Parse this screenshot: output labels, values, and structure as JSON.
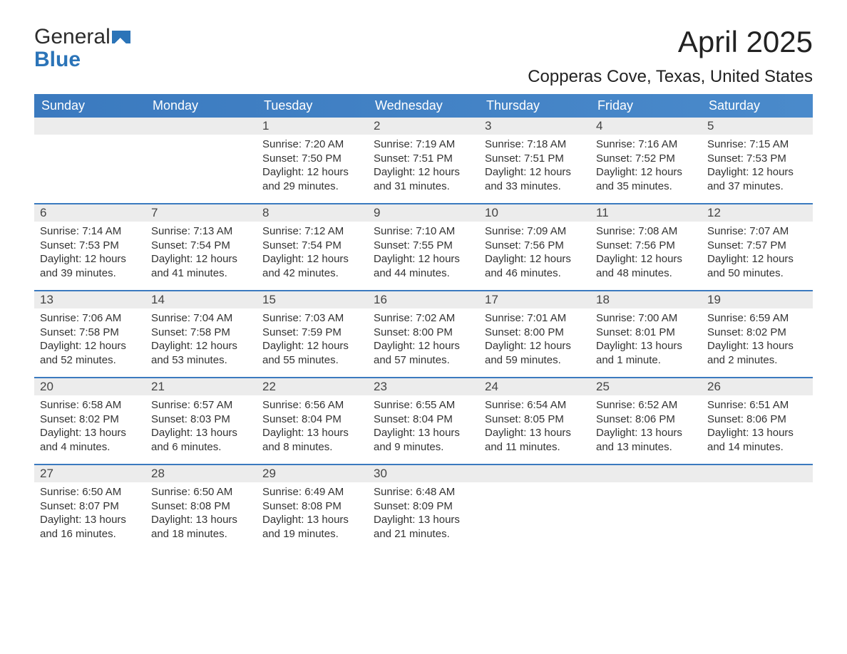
{
  "logo": {
    "word1": "General",
    "word2": "Blue"
  },
  "title": "April 2025",
  "location": "Copperas Cove, Texas, United States",
  "colors": {
    "header_blue": "#3b7abf",
    "row_stripe": "#ececec",
    "border_blue": "#3b7abf",
    "text": "#333333",
    "logo_blue": "#2b74b8",
    "background": "#ffffff"
  },
  "weekdays": [
    "Sunday",
    "Monday",
    "Tuesday",
    "Wednesday",
    "Thursday",
    "Friday",
    "Saturday"
  ],
  "weeks": [
    [
      {
        "day": "",
        "sunrise": "",
        "sunset": "",
        "daylight": ""
      },
      {
        "day": "",
        "sunrise": "",
        "sunset": "",
        "daylight": ""
      },
      {
        "day": "1",
        "sunrise": "Sunrise: 7:20 AM",
        "sunset": "Sunset: 7:50 PM",
        "daylight": "Daylight: 12 hours and 29 minutes."
      },
      {
        "day": "2",
        "sunrise": "Sunrise: 7:19 AM",
        "sunset": "Sunset: 7:51 PM",
        "daylight": "Daylight: 12 hours and 31 minutes."
      },
      {
        "day": "3",
        "sunrise": "Sunrise: 7:18 AM",
        "sunset": "Sunset: 7:51 PM",
        "daylight": "Daylight: 12 hours and 33 minutes."
      },
      {
        "day": "4",
        "sunrise": "Sunrise: 7:16 AM",
        "sunset": "Sunset: 7:52 PM",
        "daylight": "Daylight: 12 hours and 35 minutes."
      },
      {
        "day": "5",
        "sunrise": "Sunrise: 7:15 AM",
        "sunset": "Sunset: 7:53 PM",
        "daylight": "Daylight: 12 hours and 37 minutes."
      }
    ],
    [
      {
        "day": "6",
        "sunrise": "Sunrise: 7:14 AM",
        "sunset": "Sunset: 7:53 PM",
        "daylight": "Daylight: 12 hours and 39 minutes."
      },
      {
        "day": "7",
        "sunrise": "Sunrise: 7:13 AM",
        "sunset": "Sunset: 7:54 PM",
        "daylight": "Daylight: 12 hours and 41 minutes."
      },
      {
        "day": "8",
        "sunrise": "Sunrise: 7:12 AM",
        "sunset": "Sunset: 7:54 PM",
        "daylight": "Daylight: 12 hours and 42 minutes."
      },
      {
        "day": "9",
        "sunrise": "Sunrise: 7:10 AM",
        "sunset": "Sunset: 7:55 PM",
        "daylight": "Daylight: 12 hours and 44 minutes."
      },
      {
        "day": "10",
        "sunrise": "Sunrise: 7:09 AM",
        "sunset": "Sunset: 7:56 PM",
        "daylight": "Daylight: 12 hours and 46 minutes."
      },
      {
        "day": "11",
        "sunrise": "Sunrise: 7:08 AM",
        "sunset": "Sunset: 7:56 PM",
        "daylight": "Daylight: 12 hours and 48 minutes."
      },
      {
        "day": "12",
        "sunrise": "Sunrise: 7:07 AM",
        "sunset": "Sunset: 7:57 PM",
        "daylight": "Daylight: 12 hours and 50 minutes."
      }
    ],
    [
      {
        "day": "13",
        "sunrise": "Sunrise: 7:06 AM",
        "sunset": "Sunset: 7:58 PM",
        "daylight": "Daylight: 12 hours and 52 minutes."
      },
      {
        "day": "14",
        "sunrise": "Sunrise: 7:04 AM",
        "sunset": "Sunset: 7:58 PM",
        "daylight": "Daylight: 12 hours and 53 minutes."
      },
      {
        "day": "15",
        "sunrise": "Sunrise: 7:03 AM",
        "sunset": "Sunset: 7:59 PM",
        "daylight": "Daylight: 12 hours and 55 minutes."
      },
      {
        "day": "16",
        "sunrise": "Sunrise: 7:02 AM",
        "sunset": "Sunset: 8:00 PM",
        "daylight": "Daylight: 12 hours and 57 minutes."
      },
      {
        "day": "17",
        "sunrise": "Sunrise: 7:01 AM",
        "sunset": "Sunset: 8:00 PM",
        "daylight": "Daylight: 12 hours and 59 minutes."
      },
      {
        "day": "18",
        "sunrise": "Sunrise: 7:00 AM",
        "sunset": "Sunset: 8:01 PM",
        "daylight": "Daylight: 13 hours and 1 minute."
      },
      {
        "day": "19",
        "sunrise": "Sunrise: 6:59 AM",
        "sunset": "Sunset: 8:02 PM",
        "daylight": "Daylight: 13 hours and 2 minutes."
      }
    ],
    [
      {
        "day": "20",
        "sunrise": "Sunrise: 6:58 AM",
        "sunset": "Sunset: 8:02 PM",
        "daylight": "Daylight: 13 hours and 4 minutes."
      },
      {
        "day": "21",
        "sunrise": "Sunrise: 6:57 AM",
        "sunset": "Sunset: 8:03 PM",
        "daylight": "Daylight: 13 hours and 6 minutes."
      },
      {
        "day": "22",
        "sunrise": "Sunrise: 6:56 AM",
        "sunset": "Sunset: 8:04 PM",
        "daylight": "Daylight: 13 hours and 8 minutes."
      },
      {
        "day": "23",
        "sunrise": "Sunrise: 6:55 AM",
        "sunset": "Sunset: 8:04 PM",
        "daylight": "Daylight: 13 hours and 9 minutes."
      },
      {
        "day": "24",
        "sunrise": "Sunrise: 6:54 AM",
        "sunset": "Sunset: 8:05 PM",
        "daylight": "Daylight: 13 hours and 11 minutes."
      },
      {
        "day": "25",
        "sunrise": "Sunrise: 6:52 AM",
        "sunset": "Sunset: 8:06 PM",
        "daylight": "Daylight: 13 hours and 13 minutes."
      },
      {
        "day": "26",
        "sunrise": "Sunrise: 6:51 AM",
        "sunset": "Sunset: 8:06 PM",
        "daylight": "Daylight: 13 hours and 14 minutes."
      }
    ],
    [
      {
        "day": "27",
        "sunrise": "Sunrise: 6:50 AM",
        "sunset": "Sunset: 8:07 PM",
        "daylight": "Daylight: 13 hours and 16 minutes."
      },
      {
        "day": "28",
        "sunrise": "Sunrise: 6:50 AM",
        "sunset": "Sunset: 8:08 PM",
        "daylight": "Daylight: 13 hours and 18 minutes."
      },
      {
        "day": "29",
        "sunrise": "Sunrise: 6:49 AM",
        "sunset": "Sunset: 8:08 PM",
        "daylight": "Daylight: 13 hours and 19 minutes."
      },
      {
        "day": "30",
        "sunrise": "Sunrise: 6:48 AM",
        "sunset": "Sunset: 8:09 PM",
        "daylight": "Daylight: 13 hours and 21 minutes."
      },
      {
        "day": "",
        "sunrise": "",
        "sunset": "",
        "daylight": ""
      },
      {
        "day": "",
        "sunrise": "",
        "sunset": "",
        "daylight": ""
      },
      {
        "day": "",
        "sunrise": "",
        "sunset": "",
        "daylight": ""
      }
    ]
  ]
}
